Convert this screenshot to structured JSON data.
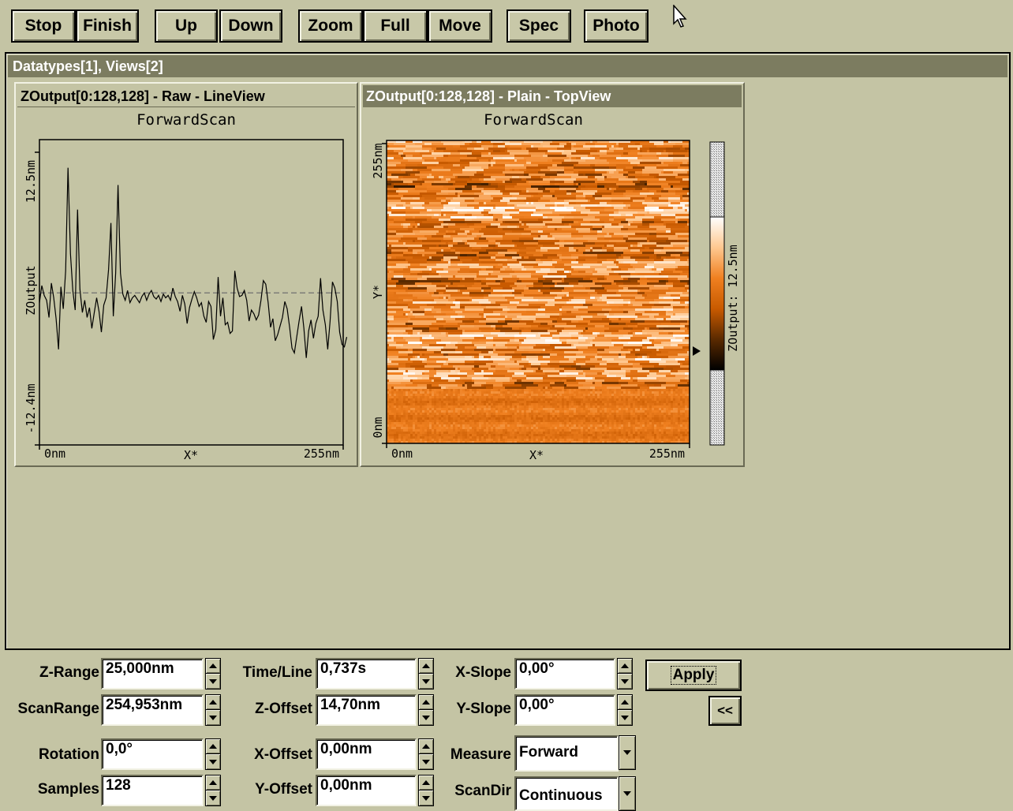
{
  "toolbar": {
    "stop": "Stop",
    "finish": "Finish",
    "up": "Up",
    "down": "Down",
    "zoom": "Zoom",
    "full": "Full",
    "move": "Move",
    "spec": "Spec",
    "photo": "Photo"
  },
  "workspace": {
    "title": "Datatypes[1], Views[2]"
  },
  "line_view": {
    "title": "ZOutput[0:128,128] - Raw - LineView"
  },
  "top_view": {
    "title": "ZOutput[0:128,128] - Plain - TopView"
  },
  "chart_data": [
    {
      "type": "line",
      "title": "ForwardScan",
      "xlabel": "X*",
      "ylabel": "ZOutput",
      "x_tick_labels": [
        "0nm",
        "255nm"
      ],
      "y_tick_labels": [
        "12.5nm",
        "-12.4nm"
      ],
      "xlim": [
        0,
        255
      ],
      "ylim": [
        -12.4,
        12.5
      ],
      "reference_line": 0,
      "x_step": 2,
      "values": [
        -0.8,
        0.6,
        -0.2,
        -0.6,
        -2.0,
        0.8,
        -0.4,
        -2.1,
        -4.6,
        0.5,
        -1.3,
        1.8,
        10.2,
        3.2,
        0.2,
        -1.4,
        6.8,
        0.3,
        -1.6,
        -0.6,
        -2.0,
        -1.2,
        -2.9,
        -1.6,
        -0.4,
        -1.5,
        -3.2,
        -1.0,
        -0.4,
        1.9,
        5.7,
        -1.9,
        1.6,
        8.8,
        1.6,
        -0.1,
        -0.6,
        0.2,
        -0.8,
        -0.4,
        -0.2,
        -0.5,
        -0.8,
        -0.3,
        0.0,
        -0.6,
        -0.1,
        0.2,
        -0.3,
        -0.5,
        -0.2,
        -0.7,
        -0.1,
        -0.4,
        -0.2,
        -0.6,
        0.4,
        -0.3,
        -0.7,
        -1.5,
        -0.2,
        -0.9,
        -2.5,
        -1.2,
        -0.5,
        0.1,
        -0.4,
        -1.1,
        -0.8,
        -1.9,
        -2.4,
        -0.7,
        -1.1,
        -3.8,
        -3.0,
        1.3,
        -1.9,
        -0.4,
        -2.6,
        -2.4,
        -3.3,
        -3.1,
        1.8,
        0.4,
        -0.3,
        -0.2,
        0.2,
        -0.6,
        -2.3,
        -1.4,
        -1.7,
        -2.2,
        -1.8,
        -0.6,
        1.0,
        0.7,
        -0.8,
        -2.8,
        -2.1,
        -3.9,
        -3.4,
        -2.7,
        -2.0,
        -0.7,
        -1.3,
        -2.8,
        -4.5,
        -4.9,
        -3.6,
        -2.3,
        -1.1,
        -2.9,
        -5.3,
        -3.1,
        -2.2,
        -3.7,
        -2.5,
        -1.9,
        1.2,
        -1.4,
        -2.6,
        -4.6,
        -2.3,
        0.9,
        0.4,
        -0.7,
        -3.2,
        -4.2,
        -4.4,
        -3.6
      ]
    },
    {
      "type": "heatmap",
      "title": "ForwardScan",
      "xlabel": "X*",
      "ylabel": "Y*",
      "x_tick_labels": [
        "0nm",
        "255nm"
      ],
      "y_tick_labels": [
        "255nm",
        "0nm"
      ],
      "grid_size": [
        128,
        128
      ],
      "colorbar_label": "ZOutput: 12.5nm",
      "colormap": [
        "#000000",
        "#5a2a00",
        "#c85a00",
        "#f08020",
        "#ffc890",
        "#ffffff"
      ]
    }
  ],
  "controls": {
    "z_range": {
      "label": "Z-Range",
      "value": "25,000nm"
    },
    "scan_range": {
      "label": "ScanRange",
      "value": "254,953nm"
    },
    "rotation": {
      "label": "Rotation",
      "value": "0,0°"
    },
    "samples": {
      "label": "Samples",
      "value": "128"
    },
    "time_line": {
      "label": "Time/Line",
      "value": "0,737s"
    },
    "z_offset": {
      "label": "Z-Offset",
      "value": "14,70nm"
    },
    "x_offset": {
      "label": "X-Offset",
      "value": "0,00nm"
    },
    "y_offset": {
      "label": "Y-Offset",
      "value": "0,00nm"
    },
    "x_slope": {
      "label": "X-Slope",
      "value": "0,00°"
    },
    "y_slope": {
      "label": "Y-Slope",
      "value": "0,00°"
    },
    "measure": {
      "label": "Measure",
      "value": "Forward"
    },
    "scan_dir": {
      "label": "ScanDir",
      "value": "Continuous"
    },
    "apply": "Apply",
    "collapse": "<<"
  }
}
